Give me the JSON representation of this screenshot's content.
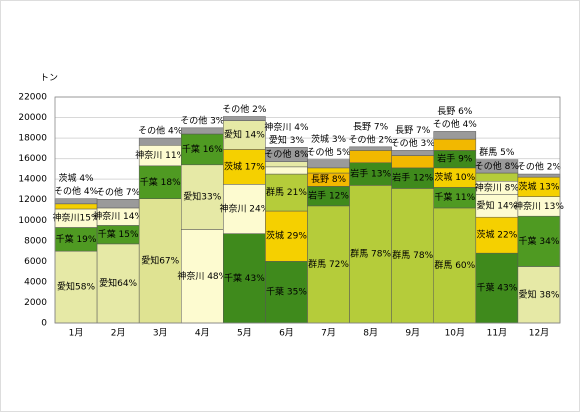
{
  "chart_data": {
    "type": "stacked_bar",
    "y_label": "トン",
    "categories": [
      "1月",
      "2月",
      "3月",
      "4月",
      "5月",
      "6月",
      "7月",
      "8月",
      "9月",
      "10月",
      "11月",
      "12月"
    ],
    "ylim": [
      0,
      22000
    ],
    "yticks": [
      0,
      2000,
      4000,
      6000,
      8000,
      10000,
      12000,
      14000,
      16000,
      18000,
      20000,
      22000
    ],
    "grid": true,
    "stacks": [
      [
        {
          "label": "愛知58%",
          "value": 7000,
          "color": "#e6e9a6"
        },
        {
          "label": "千葉 19%",
          "value": 2300,
          "color": "#4f9a22"
        },
        {
          "label": "神奈川15%",
          "value": 1800,
          "color": "#fdfbd0"
        },
        {
          "label": "茨城 4%",
          "value": 500,
          "color": "#f5d000"
        },
        {
          "label": "その他 4%",
          "value": 500,
          "color": "#9a9a9a"
        }
      ],
      [
        {
          "label": "愛知64%",
          "value": 7700,
          "color": "#e6e9a6"
        },
        {
          "label": "千葉 15%",
          "value": 1800,
          "color": "#4f9a22"
        },
        {
          "label": "神奈川 14%",
          "value": 1700,
          "color": "#fdfbd0"
        },
        {
          "label": "その他 7%",
          "value": 840,
          "color": "#9a9a9a"
        }
      ],
      [
        {
          "label": "愛知67%",
          "value": 12100,
          "color": "#dfe392"
        },
        {
          "label": "千葉 18%",
          "value": 3200,
          "color": "#4f9a22"
        },
        {
          "label": "神奈川 11%",
          "value": 2000,
          "color": "#fdfbd0"
        },
        {
          "label": "その他 4%",
          "value": 700,
          "color": "#9a9a9a"
        }
      ],
      [
        {
          "label": "神奈川 48%",
          "value": 9100,
          "color": "#fdfbd0"
        },
        {
          "label": "愛知33%",
          "value": 6300,
          "color": "#e6e9a6"
        },
        {
          "label": "千葉 16%",
          "value": 3000,
          "color": "#4f9a22"
        },
        {
          "label": "その他 3%",
          "value": 600,
          "color": "#9a9a9a"
        }
      ],
      [
        {
          "label": "千葉 43%",
          "value": 8700,
          "color": "#3f8a1c"
        },
        {
          "label": "神奈川 24%",
          "value": 4800,
          "color": "#fdfbd0"
        },
        {
          "label": "茨城 17%",
          "value": 3400,
          "color": "#f5d000"
        },
        {
          "label": "愛知 14%",
          "value": 2800,
          "color": "#e6e9a6"
        },
        {
          "label": "その他 2%",
          "value": 400,
          "color": "#9a9a9a"
        }
      ],
      [
        {
          "label": "千葉 35%",
          "value": 6000,
          "color": "#3f8a1c"
        },
        {
          "label": "茨城 29%",
          "value": 4900,
          "color": "#f5d000"
        },
        {
          "label": "群馬 21%",
          "value": 3600,
          "color": "#b5cc3a"
        },
        {
          "label": "神奈川 4%",
          "value": 700,
          "color": "#fdfbd0"
        },
        {
          "label": "愛知 3%",
          "value": 500,
          "color": "#e6e9a6"
        },
        {
          "label": "その他 8%",
          "value": 1400,
          "color": "#9a9a9a"
        }
      ],
      [
        {
          "label": "群馬 72%",
          "value": 11400,
          "color": "#b5cc3a"
        },
        {
          "label": "岩手 12%",
          "value": 1900,
          "color": "#3f8a1c"
        },
        {
          "label": "長野 8%",
          "value": 1300,
          "color": "#f2b800"
        },
        {
          "label": "茨城 3%",
          "value": 500,
          "color": "#f5d000"
        },
        {
          "label": "その他 5%",
          "value": 800,
          "color": "#9a9a9a"
        }
      ],
      [
        {
          "label": "群馬 78%",
          "value": 13400,
          "color": "#b5cc3a"
        },
        {
          "label": "岩手 13%",
          "value": 2200,
          "color": "#3f8a1c"
        },
        {
          "label": "長野 7%",
          "value": 1200,
          "color": "#f2b800"
        },
        {
          "label": "その他 2%",
          "value": 350,
          "color": "#9a9a9a"
        }
      ],
      [
        {
          "label": "群馬 78%",
          "value": 13100,
          "color": "#b5cc3a"
        },
        {
          "label": "岩手 12%",
          "value": 2000,
          "color": "#3f8a1c"
        },
        {
          "label": "長野 7%",
          "value": 1200,
          "color": "#f2b800"
        },
        {
          "label": "その他 3%",
          "value": 500,
          "color": "#9a9a9a"
        }
      ],
      [
        {
          "label": "群馬 60%",
          "value": 11200,
          "color": "#b5cc3a"
        },
        {
          "label": "千葉 11%",
          "value": 2000,
          "color": "#4f9a22"
        },
        {
          "label": "茨城 10%",
          "value": 1900,
          "color": "#f5d000"
        },
        {
          "label": "岩手 9%",
          "value": 1700,
          "color": "#3f8a1c"
        },
        {
          "label": "長野 6%",
          "value": 1100,
          "color": "#f2b800"
        },
        {
          "label": "その他 4%",
          "value": 750,
          "color": "#9a9a9a"
        }
      ],
      [
        {
          "label": "千葉 43%",
          "value": 6800,
          "color": "#3f8a1c"
        },
        {
          "label": "茨城 22%",
          "value": 3500,
          "color": "#f5d000"
        },
        {
          "label": "愛知 14%",
          "value": 2200,
          "color": "#fdfbd0"
        },
        {
          "label": "神奈川 8%",
          "value": 1300,
          "color": "#fdfbd0"
        },
        {
          "label": "群馬 5%",
          "value": 800,
          "color": "#b5cc3a"
        },
        {
          "label": "その他 8%",
          "value": 1300,
          "color": "#9a9a9a"
        }
      ],
      [
        {
          "label": "愛知 38%",
          "value": 5500,
          "color": "#e6e9a6"
        },
        {
          "label": "千葉 34%",
          "value": 4900,
          "color": "#4f9a22"
        },
        {
          "label": "神奈川 13%",
          "value": 1900,
          "color": "#fdfbd0"
        },
        {
          "label": "茨城 13%",
          "value": 1900,
          "color": "#f5d000"
        },
        {
          "label": "その他 2%",
          "value": 300,
          "color": "#9a9a9a"
        }
      ]
    ]
  }
}
